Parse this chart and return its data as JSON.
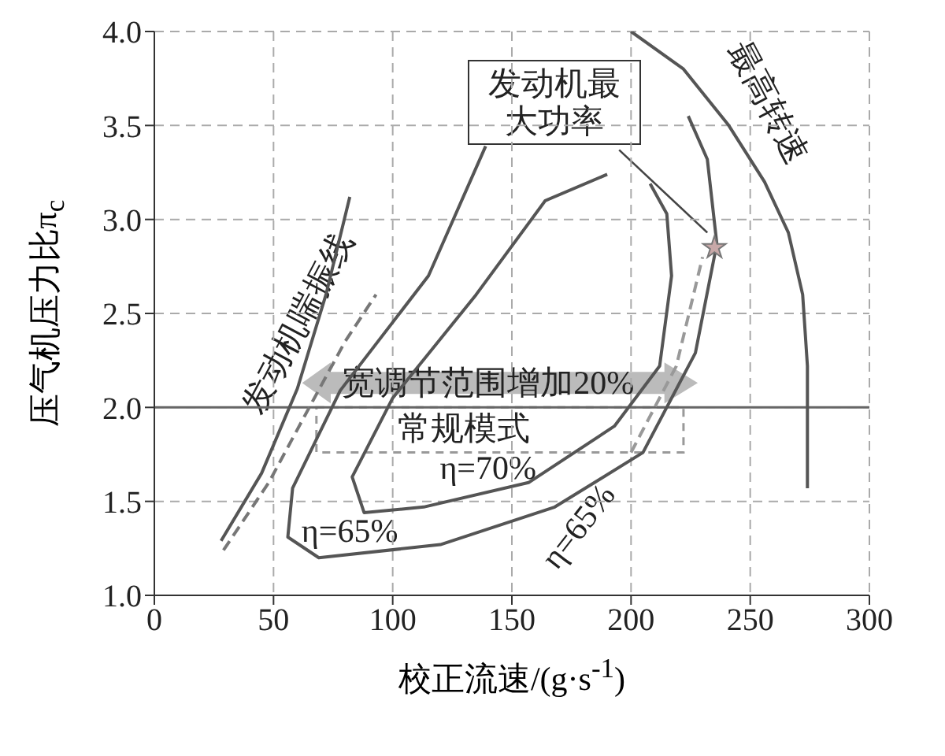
{
  "chart_data": {
    "type": "line",
    "xlabel": "校正流速/(g·s$^{-1}$)",
    "ylabel": "压气机压力比π$_{c}$",
    "xlim": [
      0,
      300
    ],
    "xticks": [
      0,
      50,
      100,
      150,
      200,
      250,
      300
    ],
    "ylim": [
      1.0,
      4.0
    ],
    "yticks": [
      {
        "value": 1.0,
        "label": "1.0"
      },
      {
        "value": 1.5,
        "label": "1.5"
      },
      {
        "value": 2.0,
        "label": "2.0"
      },
      {
        "value": 2.5,
        "label": "2.5"
      },
      {
        "value": 3.0,
        "label": "3.0"
      },
      {
        "value": 3.5,
        "label": "3.5"
      },
      {
        "value": 4.0,
        "label": "4.0"
      }
    ],
    "grid": true,
    "marker": "none",
    "series": [
      {
        "color": "#555555",
        "x": [
          28,
          45,
          60,
          72,
          82
        ],
        "values": [
          1.29,
          1.65,
          2.1,
          2.6,
          3.12
        ]
      },
      {
        "color": "#777777",
        "line_style": "dashed",
        "x": [
          29,
          48,
          65,
          80,
          93
        ],
        "values": [
          1.24,
          1.6,
          2.0,
          2.35,
          2.6
        ]
      },
      {
        "color": "#555555",
        "x": [
          200,
          222,
          241,
          256,
          266,
          272,
          274,
          274
        ],
        "values": [
          4.0,
          3.8,
          3.5,
          3.2,
          2.93,
          2.6,
          2.22,
          1.57
        ]
      },
      {
        "color": "#555555",
        "x": [
          139,
          115,
          78,
          58,
          56,
          69,
          120,
          168,
          205,
          227,
          236,
          232,
          224
        ],
        "values": [
          3.39,
          2.7,
          2.09,
          1.57,
          1.31,
          1.2,
          1.27,
          1.47,
          1.76,
          2.29,
          2.87,
          3.32,
          3.55
        ]
      },
      {
        "color": "#555555",
        "x": [
          190,
          164,
          135,
          100,
          83,
          88,
          113,
          157,
          193,
          212,
          217,
          215,
          208
        ],
        "values": [
          3.24,
          3.1,
          2.6,
          2.05,
          1.63,
          1.44,
          1.47,
          1.6,
          1.9,
          2.22,
          2.7,
          3.03,
          3.19
        ]
      },
      {
        "color": "#999999",
        "line_style": "dashed",
        "x": [
          200,
          219,
          230
        ],
        "values": [
          1.76,
          2.22,
          2.8
        ]
      },
      {
        "type": "scatter",
        "marker": "star",
        "color": "#c8a8a8",
        "x": [
          235
        ],
        "values": [
          2.85
        ]
      }
    ],
    "ref_lines": [
      {
        "axis": "y",
        "value": 2.0,
        "color": "#666666"
      }
    ],
    "annotations": [
      "发动机喘振线",
      "最高转速",
      "发动机最大功率",
      "宽调节范围增加20%",
      "常规模式",
      "η=70%",
      "η=65%",
      "η=65%"
    ]
  }
}
